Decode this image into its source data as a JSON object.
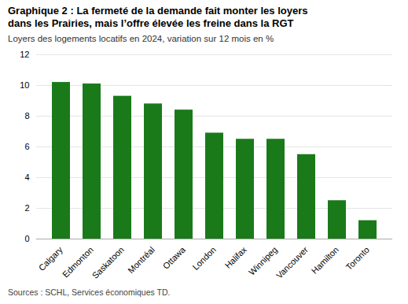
{
  "chart_data": {
    "type": "bar",
    "title": "Graphique 2 : La fermeté de la demande fait monter les loyers\ndans les Prairies, mais l’offre élevée les freine dans la RGT",
    "subtitle": "Loyers des logements locatifs en 2024, variation sur 12 mois en %",
    "source": "Sources : SCHL, Services économiques TD.",
    "categories": [
      "Calgary",
      "Edmonton",
      "Saskatoon",
      "Montréal",
      "Ottawa",
      "London",
      "Halifax",
      "Winnipeg",
      "Vancouver",
      "Hamilton",
      "Toronto"
    ],
    "values": [
      10.2,
      10.1,
      9.3,
      8.8,
      8.4,
      6.9,
      6.5,
      6.5,
      5.5,
      2.5,
      1.2
    ],
    "color": "#1a7a1a",
    "ylim": [
      0,
      12
    ],
    "yticks": [
      0,
      2,
      4,
      6,
      8,
      10,
      12
    ],
    "grid": true
  }
}
